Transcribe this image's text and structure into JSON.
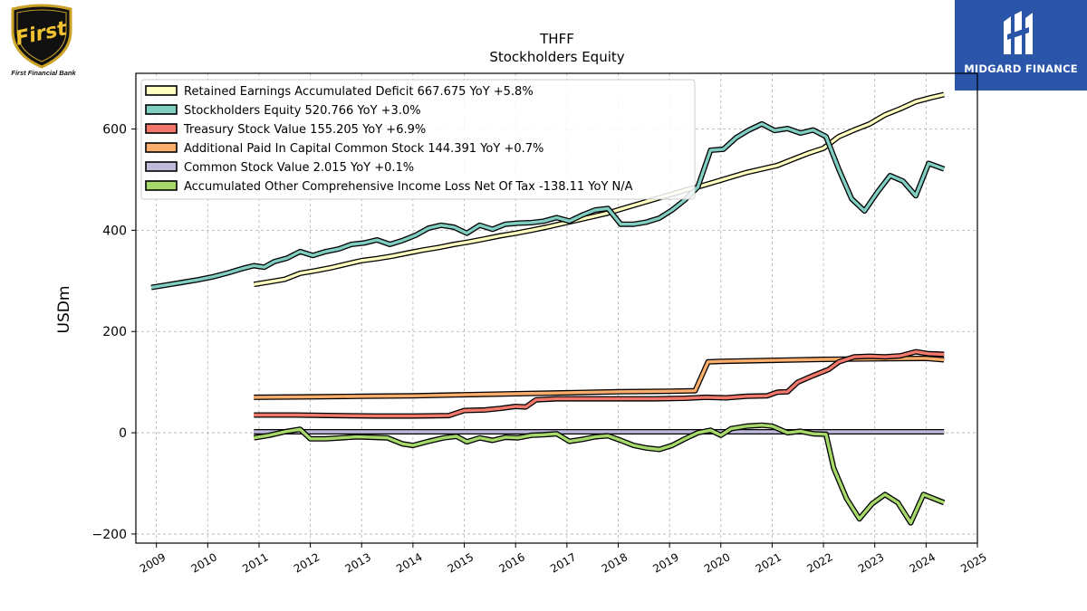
{
  "logos": {
    "left_mark_text": "First",
    "left_name": "First Financial Bank",
    "right_name": "MIDGARD FINANCE"
  },
  "chart_data": {
    "type": "line",
    "title": "THFF",
    "subtitle": "Stockholders  Equity",
    "ylabel": "USDm",
    "xlabel": "",
    "xlim": [
      2008.6,
      2025.0
    ],
    "ylim": [
      -218,
      710
    ],
    "yticks": [
      -200,
      0,
      200,
      400,
      600
    ],
    "xticks": [
      2009,
      2010,
      2011,
      2012,
      2013,
      2014,
      2015,
      2016,
      2017,
      2018,
      2019,
      2020,
      2021,
      2022,
      2023,
      2024,
      2025
    ],
    "grid": true,
    "legend_position": "top-left",
    "series": [
      {
        "name": "Retained Earnings Accumulated Deficit",
        "legend": "Retained Earnings Accumulated Deficit  667.675 YoY +5.8%",
        "color": "#ffffbf",
        "points": [
          [
            2010.9,
            293
          ],
          [
            2011.2,
            298
          ],
          [
            2011.5,
            303
          ],
          [
            2011.8,
            315
          ],
          [
            2012.1,
            320
          ],
          [
            2012.4,
            326
          ],
          [
            2012.7,
            333
          ],
          [
            2013.0,
            340
          ],
          [
            2013.3,
            344
          ],
          [
            2013.6,
            349
          ],
          [
            2013.9,
            355
          ],
          [
            2014.2,
            361
          ],
          [
            2014.5,
            366
          ],
          [
            2014.8,
            372
          ],
          [
            2015.1,
            377
          ],
          [
            2015.4,
            383
          ],
          [
            2015.7,
            389
          ],
          [
            2016.0,
            394
          ],
          [
            2016.3,
            400
          ],
          [
            2016.6,
            406
          ],
          [
            2016.9,
            413
          ],
          [
            2017.2,
            420
          ],
          [
            2017.5,
            427
          ],
          [
            2017.8,
            434
          ],
          [
            2018.1,
            443
          ],
          [
            2018.4,
            452
          ],
          [
            2018.7,
            461
          ],
          [
            2019.0,
            470
          ],
          [
            2019.3,
            479
          ],
          [
            2019.6,
            487
          ],
          [
            2019.9,
            496
          ],
          [
            2020.2,
            505
          ],
          [
            2020.5,
            514
          ],
          [
            2020.8,
            521
          ],
          [
            2021.1,
            528
          ],
          [
            2021.4,
            540
          ],
          [
            2021.7,
            552
          ],
          [
            2022.0,
            562
          ],
          [
            2022.3,
            585
          ],
          [
            2022.6,
            598
          ],
          [
            2022.9,
            610
          ],
          [
            2023.2,
            628
          ],
          [
            2023.5,
            640
          ],
          [
            2023.8,
            654
          ],
          [
            2024.1,
            662
          ],
          [
            2024.35,
            668
          ]
        ]
      },
      {
        "name": "Stockholders Equity",
        "legend": "Stockholders Equity  520.766 YoY +3.0%",
        "color": "#80cdc1",
        "points": [
          [
            2008.9,
            287
          ],
          [
            2009.2,
            292
          ],
          [
            2009.5,
            297
          ],
          [
            2009.8,
            302
          ],
          [
            2010.1,
            308
          ],
          [
            2010.4,
            316
          ],
          [
            2010.7,
            325
          ],
          [
            2010.9,
            330
          ],
          [
            2011.1,
            327
          ],
          [
            2011.3,
            338
          ],
          [
            2011.55,
            345
          ],
          [
            2011.8,
            358
          ],
          [
            2012.05,
            350
          ],
          [
            2012.3,
            358
          ],
          [
            2012.55,
            363
          ],
          [
            2012.8,
            372
          ],
          [
            2013.05,
            375
          ],
          [
            2013.3,
            381
          ],
          [
            2013.55,
            372
          ],
          [
            2013.8,
            380
          ],
          [
            2014.05,
            390
          ],
          [
            2014.3,
            404
          ],
          [
            2014.55,
            410
          ],
          [
            2014.8,
            406
          ],
          [
            2015.05,
            394
          ],
          [
            2015.3,
            410
          ],
          [
            2015.55,
            402
          ],
          [
            2015.8,
            412
          ],
          [
            2016.05,
            414
          ],
          [
            2016.3,
            415
          ],
          [
            2016.55,
            418
          ],
          [
            2016.8,
            425
          ],
          [
            2017.05,
            418
          ],
          [
            2017.3,
            430
          ],
          [
            2017.55,
            440
          ],
          [
            2017.8,
            443
          ],
          [
            2018.05,
            412
          ],
          [
            2018.3,
            412
          ],
          [
            2018.55,
            416
          ],
          [
            2018.8,
            424
          ],
          [
            2019.05,
            440
          ],
          [
            2019.3,
            460
          ],
          [
            2019.55,
            485
          ],
          [
            2019.8,
            558
          ],
          [
            2020.05,
            560
          ],
          [
            2020.3,
            583
          ],
          [
            2020.55,
            598
          ],
          [
            2020.8,
            610
          ],
          [
            2021.05,
            597
          ],
          [
            2021.3,
            601
          ],
          [
            2021.55,
            592
          ],
          [
            2021.8,
            598
          ],
          [
            2022.05,
            585
          ],
          [
            2022.3,
            520
          ],
          [
            2022.55,
            462
          ],
          [
            2022.8,
            438
          ],
          [
            2023.05,
            475
          ],
          [
            2023.3,
            508
          ],
          [
            2023.55,
            497
          ],
          [
            2023.8,
            468
          ],
          [
            2024.05,
            532
          ],
          [
            2024.35,
            521
          ]
        ]
      },
      {
        "name": "Treasury Stock Value",
        "legend": "Treasury Stock Value  155.205 YoY +6.9%",
        "color": "#f1786b",
        "points": [
          [
            2010.9,
            35
          ],
          [
            2011.7,
            35
          ],
          [
            2012.5,
            34
          ],
          [
            2013.3,
            33
          ],
          [
            2014.0,
            33
          ],
          [
            2014.7,
            34
          ],
          [
            2015.0,
            44
          ],
          [
            2015.4,
            45
          ],
          [
            2015.7,
            48
          ],
          [
            2016.0,
            52
          ],
          [
            2016.2,
            51
          ],
          [
            2016.4,
            65
          ],
          [
            2016.8,
            67
          ],
          [
            2017.4,
            67
          ],
          [
            2018.0,
            67
          ],
          [
            2018.7,
            67
          ],
          [
            2019.3,
            68
          ],
          [
            2019.7,
            70
          ],
          [
            2020.1,
            69
          ],
          [
            2020.5,
            72
          ],
          [
            2020.9,
            73
          ],
          [
            2021.1,
            80
          ],
          [
            2021.3,
            81
          ],
          [
            2021.5,
            100
          ],
          [
            2021.8,
            113
          ],
          [
            2022.1,
            125
          ],
          [
            2022.3,
            140
          ],
          [
            2022.6,
            150
          ],
          [
            2022.9,
            151
          ],
          [
            2023.2,
            150
          ],
          [
            2023.5,
            152
          ],
          [
            2023.8,
            160
          ],
          [
            2024.05,
            156
          ],
          [
            2024.35,
            155
          ]
        ]
      },
      {
        "name": "Additional Paid In Capital Common Stock",
        "legend": "Additional Paid In Capital Common Stock  144.391 YoY +0.7%",
        "color": "#fdae6b",
        "points": [
          [
            2010.9,
            70
          ],
          [
            2012.0,
            71
          ],
          [
            2013.0,
            72
          ],
          [
            2014.0,
            73
          ],
          [
            2015.0,
            75
          ],
          [
            2016.0,
            77
          ],
          [
            2017.0,
            79
          ],
          [
            2018.0,
            81
          ],
          [
            2019.0,
            82
          ],
          [
            2019.5,
            83
          ],
          [
            2019.75,
            140
          ],
          [
            2020.0,
            141
          ],
          [
            2021.0,
            143
          ],
          [
            2022.0,
            145
          ],
          [
            2023.0,
            146
          ],
          [
            2024.0,
            147
          ],
          [
            2024.35,
            144
          ]
        ]
      },
      {
        "name": "Common Stock Value",
        "legend": "Common Stock Value  2.015 YoY +0.1%",
        "color": "#bebada",
        "points": [
          [
            2010.9,
            2
          ],
          [
            2024.35,
            2
          ]
        ]
      },
      {
        "name": "Accumulated Other Comprehensive Income Loss Net Of Tax",
        "legend": "Accumulated Other Comprehensive Income Loss Net Of Tax  -138.11 YoY N/A",
        "color": "#a6d96a",
        "points": [
          [
            2010.9,
            -10
          ],
          [
            2011.2,
            -5
          ],
          [
            2011.5,
            2
          ],
          [
            2011.8,
            7
          ],
          [
            2012.0,
            -12
          ],
          [
            2012.3,
            -12
          ],
          [
            2012.6,
            -10
          ],
          [
            2012.9,
            -8
          ],
          [
            2013.2,
            -9
          ],
          [
            2013.5,
            -10
          ],
          [
            2013.8,
            -22
          ],
          [
            2014.0,
            -25
          ],
          [
            2014.3,
            -17
          ],
          [
            2014.6,
            -10
          ],
          [
            2014.85,
            -7
          ],
          [
            2015.05,
            -18
          ],
          [
            2015.3,
            -10
          ],
          [
            2015.55,
            -15
          ],
          [
            2015.8,
            -9
          ],
          [
            2016.05,
            -10
          ],
          [
            2016.3,
            -5
          ],
          [
            2016.55,
            -4
          ],
          [
            2016.8,
            -2
          ],
          [
            2017.05,
            -17
          ],
          [
            2017.3,
            -13
          ],
          [
            2017.55,
            -8
          ],
          [
            2017.8,
            -6
          ],
          [
            2018.05,
            -15
          ],
          [
            2018.3,
            -25
          ],
          [
            2018.55,
            -30
          ],
          [
            2018.8,
            -33
          ],
          [
            2019.05,
            -25
          ],
          [
            2019.3,
            -12
          ],
          [
            2019.55,
            0
          ],
          [
            2019.8,
            5
          ],
          [
            2020.0,
            -5
          ],
          [
            2020.2,
            8
          ],
          [
            2020.5,
            13
          ],
          [
            2020.8,
            15
          ],
          [
            2021.0,
            13
          ],
          [
            2021.3,
            0
          ],
          [
            2021.55,
            3
          ],
          [
            2021.8,
            -2
          ],
          [
            2022.05,
            -3
          ],
          [
            2022.2,
            -70
          ],
          [
            2022.45,
            -130
          ],
          [
            2022.7,
            -170
          ],
          [
            2022.95,
            -140
          ],
          [
            2023.2,
            -122
          ],
          [
            2023.45,
            -138
          ],
          [
            2023.7,
            -178
          ],
          [
            2023.95,
            -122
          ],
          [
            2024.35,
            -138
          ]
        ]
      }
    ]
  }
}
